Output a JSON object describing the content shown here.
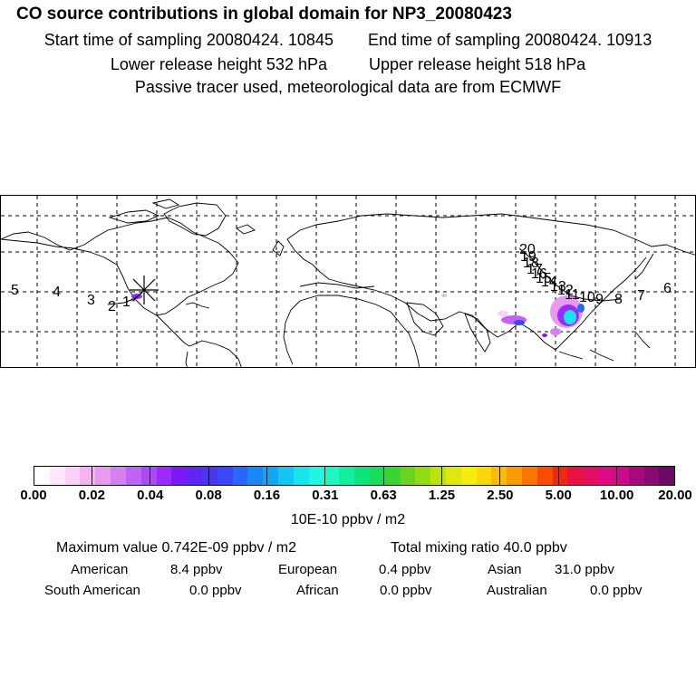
{
  "header": {
    "title": "CO  source contributions in global domain for NP3_20080423",
    "start_time": "Start time of sampling 20080424. 10845",
    "end_time": "End time of sampling 20080424. 10913",
    "lower_height": "Lower release height  532 hPa",
    "upper_height": "Upper release height  518 hPa",
    "note": "Passive tracer used, meteorological data are from ECMWF"
  },
  "map": {
    "trajectory_labels": [
      "5",
      "4",
      "3",
      "2",
      "1",
      "20",
      "19",
      "18",
      "17",
      "16",
      "15",
      "14",
      "13",
      "12",
      "11",
      "10",
      "9",
      "8",
      "7",
      "6"
    ],
    "release_marker": "release-point"
  },
  "colorbar": {
    "colors": [
      "#ffffff",
      "#fde9fb",
      "#f9d0f6",
      "#f3b4f0",
      "#e89aef",
      "#d57ff2",
      "#c063f5",
      "#ab48f8",
      "#9a2bfa",
      "#7a1af7",
      "#5f26f2",
      "#4a35f0",
      "#3a48f4",
      "#2868f3",
      "#1a88f3",
      "#12a6f5",
      "#14c6f3",
      "#19e3ef",
      "#21f6e5",
      "#1ef6c4",
      "#11ef9f",
      "#0ee37c",
      "#19dc57",
      "#3bd432",
      "#68d41e",
      "#93db18",
      "#bde214",
      "#dde810",
      "#f5ee0d",
      "#fbd80a",
      "#fbba08",
      "#fb9a06",
      "#f97604",
      "#f54f05",
      "#ef2a0b",
      "#e91043",
      "#e30d63",
      "#dc0c80",
      "#c80c8d",
      "#a80a7d",
      "#8a0971",
      "#6c0963"
    ],
    "ticks": [
      "0.00",
      "0.02",
      "0.04",
      "0.08",
      "0.16",
      "0.31",
      "0.63",
      "1.25",
      "2.50",
      "5.00",
      "10.00",
      "20.00"
    ],
    "unit": "10E-10 ppbv / m2"
  },
  "stats": {
    "maximum": "Maximum value  0.742E-09 ppbv / m2",
    "total": "Total mixing ratio      40.0 ppbv",
    "american_label": "American",
    "american_value": "8.4 ppbv",
    "european_label": "European",
    "european_value": "0.4 ppbv",
    "asian_label": "Asian",
    "asian_value": "31.0 ppbv",
    "south_american_label": "South American",
    "south_american_value": "0.0 ppbv",
    "african_label": "African",
    "african_value": "0.0 ppbv",
    "australian_label": "Australian",
    "australian_value": "0.0 ppbv"
  }
}
